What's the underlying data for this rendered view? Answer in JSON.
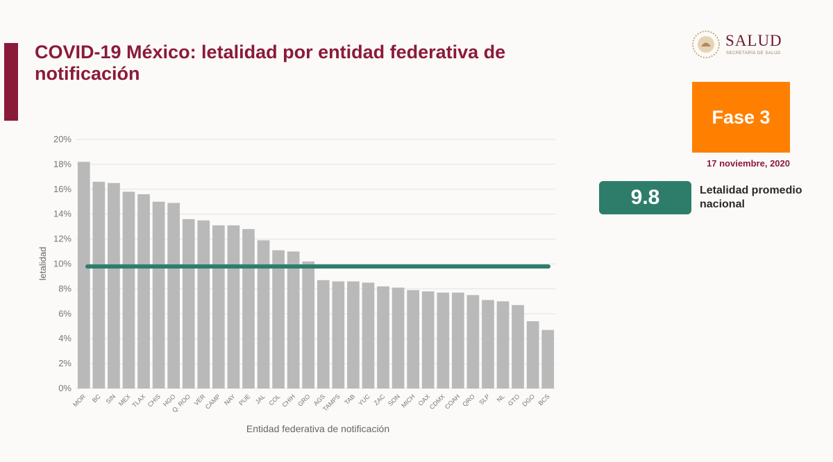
{
  "header": {
    "title": "COVID-19 México: letalidad por entidad federativa de notificación"
  },
  "logo": {
    "name": "SALUD",
    "subtitle": "SECRETARÍA DE SALUD",
    "icon": "mexico-coat-of-arms-icon"
  },
  "phase": {
    "label": "Fase 3",
    "color": "#ff8000"
  },
  "date": "17 noviembre, 2020",
  "national_average": {
    "value": "9.8",
    "label": "Letalidad promedio nacional",
    "color": "#2e7d6b"
  },
  "colors": {
    "accent": "#8b1a3a",
    "bar": "#b9b9b9",
    "average_line": "#2e7d6b"
  },
  "chart_data": {
    "type": "bar",
    "xlabel": "Entidad federativa de notificación",
    "ylabel": "letalidad",
    "ylim": [
      0,
      20
    ],
    "yticks": [
      0,
      2,
      4,
      6,
      8,
      10,
      12,
      14,
      16,
      18,
      20
    ],
    "ytick_labels": [
      "0%",
      "2%",
      "4%",
      "6%",
      "8%",
      "10%",
      "12%",
      "14%",
      "16%",
      "18%",
      "20%"
    ],
    "grid": true,
    "categories": [
      "MOR",
      "BC",
      "SIN",
      "MEX",
      "TLAX",
      "CHIS",
      "HGO",
      "Q. ROO",
      "VER",
      "CAMP",
      "NAY",
      "PUE",
      "JAL",
      "COL",
      "CHIH",
      "GRO",
      "AGS",
      "TAMPS",
      "TAB",
      "YUC",
      "ZAC",
      "SON",
      "MICH",
      "OAX",
      "CDMX",
      "COAH",
      "QRO",
      "SLP",
      "NL",
      "GTO",
      "DGO",
      "BCS"
    ],
    "values": [
      18.2,
      16.6,
      16.5,
      15.8,
      15.6,
      15.0,
      14.9,
      13.6,
      13.5,
      13.1,
      13.1,
      12.8,
      11.9,
      11.1,
      11.0,
      10.2,
      8.7,
      8.6,
      8.6,
      8.5,
      8.2,
      8.1,
      7.9,
      7.8,
      7.7,
      7.7,
      7.5,
      7.1,
      7.0,
      6.7,
      5.4,
      4.7
    ],
    "average_line": 9.8
  }
}
